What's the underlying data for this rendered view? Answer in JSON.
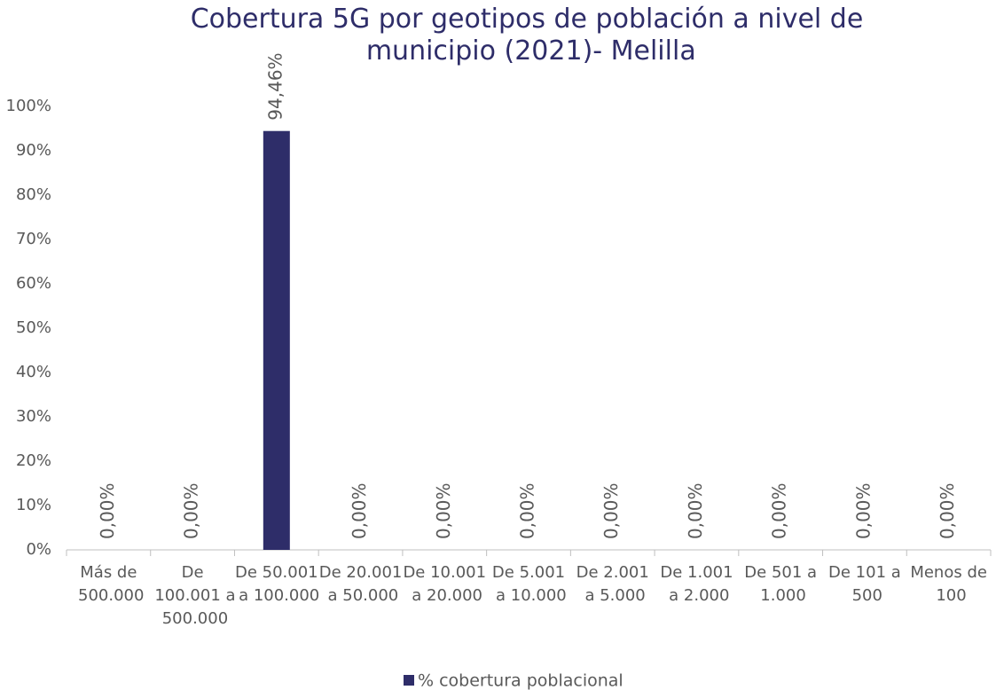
{
  "chart_data": {
    "type": "bar",
    "title": "Cobertura 5G por geotipos de población a nivel de municipio (2021)- Melilla",
    "categories": [
      "Más de 500.000",
      "De 100.001 a 500.000",
      "De 50.001 a 100.000",
      "De 20.001 a 50.000",
      "De 10.001 a 20.000",
      "De 5.001 a 10.000",
      "De 2.001 a 5.000",
      "De 1.001 a 2.000",
      "De 501 a 1.000",
      "De 101 a 500",
      "Menos de 100"
    ],
    "series": [
      {
        "name": "% cobertura poblacional",
        "color": "#2e2d69",
        "values": [
          0,
          0,
          94.46,
          0,
          0,
          0,
          0,
          0,
          0,
          0,
          0
        ],
        "value_labels": [
          "0,00%",
          "0,00%",
          "94,46%",
          "0,00%",
          "0,00%",
          "0,00%",
          "0,00%",
          "0,00%",
          "0,00%",
          "0,00%",
          "0,00%"
        ]
      }
    ],
    "ylim": [
      0,
      100
    ],
    "yticks": [
      {
        "value": 0,
        "label": "0%"
      },
      {
        "value": 10,
        "label": "10%"
      },
      {
        "value": 20,
        "label": "20%"
      },
      {
        "value": 30,
        "label": "30%"
      },
      {
        "value": 40,
        "label": "40%"
      },
      {
        "value": 50,
        "label": "50%"
      },
      {
        "value": 60,
        "label": "60%"
      },
      {
        "value": 70,
        "label": "70%"
      },
      {
        "value": 80,
        "label": "80%"
      },
      {
        "value": 90,
        "label": "90%"
      },
      {
        "value": 100,
        "label": "100%"
      }
    ],
    "grid": false,
    "legend": "bottom"
  }
}
